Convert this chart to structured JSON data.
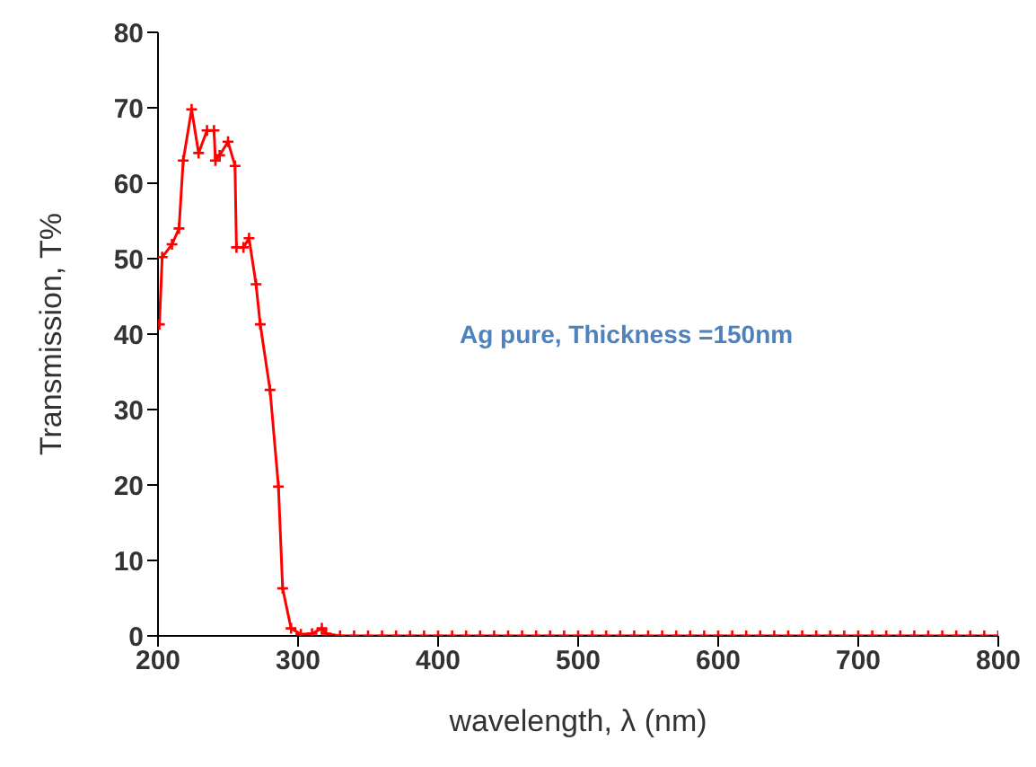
{
  "chart_data": {
    "type": "line",
    "xlabel": "wavelength, λ (nm)",
    "ylabel": "Transmission, T%",
    "annotations": [
      "Ag pure, Thickness =150nm"
    ],
    "xlim": [
      200,
      800
    ],
    "xticks": [
      200,
      300,
      400,
      500,
      600,
      700,
      800
    ],
    "ylim": [
      0,
      80
    ],
    "yticks": [
      0,
      10,
      20,
      30,
      40,
      50,
      60,
      70,
      80
    ],
    "grid": false,
    "legend": false,
    "marker": "cross",
    "line_style": "solid",
    "series": [
      {
        "color": "#ff0000",
        "x": [
          201,
          203,
          210,
          215,
          218,
          224,
          229,
          235,
          240,
          241,
          244,
          250,
          255,
          256,
          261,
          265,
          270,
          273,
          280,
          286,
          289,
          295,
          302,
          310,
          317,
          320,
          330,
          340,
          350,
          360,
          370,
          380,
          390,
          400,
          410,
          420,
          430,
          440,
          450,
          460,
          470,
          480,
          490,
          500,
          510,
          520,
          530,
          540,
          550,
          560,
          570,
          580,
          590,
          600,
          610,
          620,
          630,
          640,
          650,
          660,
          670,
          680,
          690,
          700,
          710,
          720,
          730,
          740,
          750,
          760,
          770,
          780,
          790,
          800
        ],
        "values": [
          41.3,
          50.2,
          51.9,
          54,
          63,
          69.8,
          64,
          67,
          67,
          63,
          63.7,
          65.5,
          62.3,
          51.5,
          51.5,
          52.7,
          46.6,
          41.3,
          32.6,
          19.8,
          6.3,
          1,
          0.2,
          0.3,
          1,
          0.3,
          0,
          0,
          0,
          0,
          0,
          0,
          0,
          0,
          0,
          0,
          0,
          0,
          0,
          0,
          0,
          0,
          0,
          0,
          0,
          0,
          0,
          0,
          0,
          0,
          0,
          0,
          0,
          0,
          0,
          0,
          0,
          0,
          0,
          0,
          0,
          0,
          0,
          0,
          0,
          0,
          0,
          0,
          0,
          0,
          0,
          0,
          0,
          0
        ]
      }
    ]
  }
}
